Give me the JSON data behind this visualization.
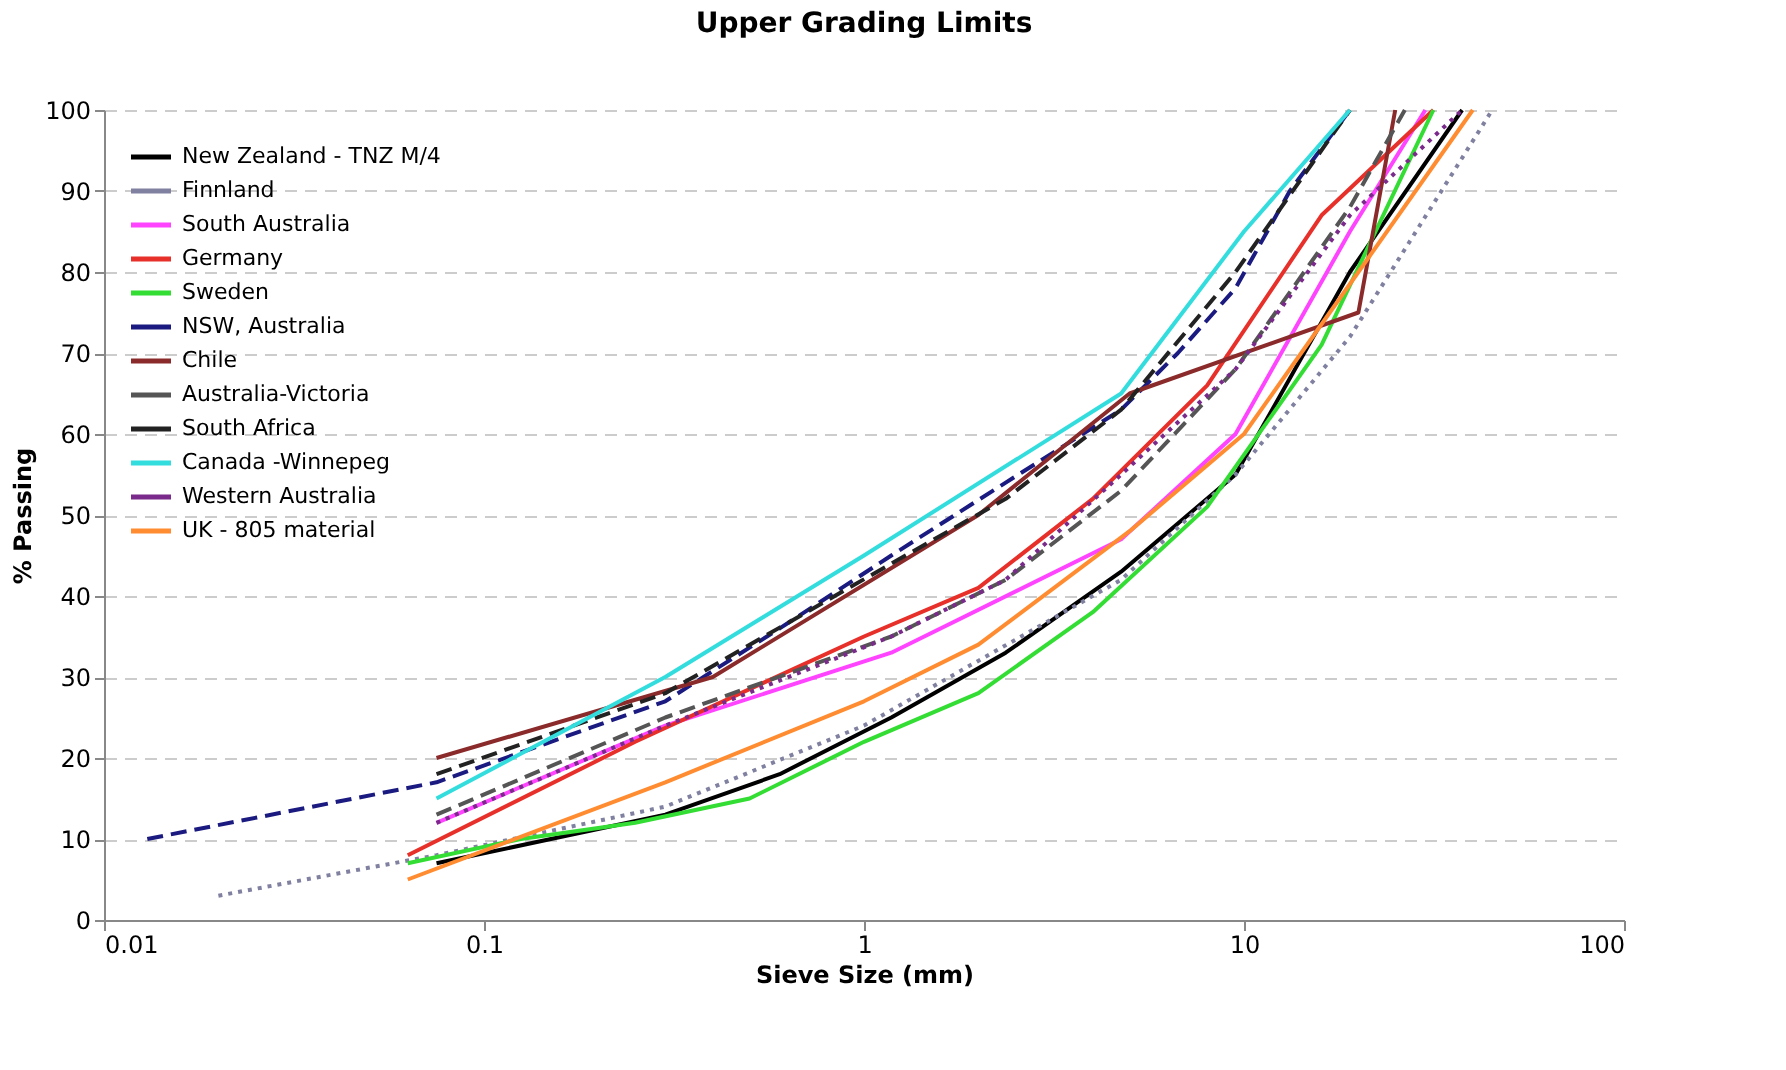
{
  "chart_data": {
    "type": "line",
    "title": "Upper Grading Limits",
    "xlabel": "Sieve Size (mm)",
    "ylabel": "% Passing",
    "log": "x",
    "grid": "y",
    "legend": "top left",
    "xlim": [
      0.01,
      100
    ],
    "xticks": [
      0.01,
      0.1,
      1,
      10,
      100
    ],
    "ylim": [
      0,
      100
    ],
    "yticks": [
      0,
      10,
      20,
      30,
      40,
      50,
      60,
      70,
      80,
      90,
      100
    ],
    "series": [
      {
        "name": "New Zealand - TNZ M/4",
        "color": "#000000",
        "line_style": "solid",
        "x": [
          0.075,
          0.15,
          0.3,
          0.6,
          1.18,
          2.36,
          4.75,
          9.5,
          19,
          37.5
        ],
        "values": [
          7,
          10,
          13,
          18,
          25,
          33,
          43,
          55,
          80,
          100
        ]
      },
      {
        "name": "Finnland",
        "color": "#8080a0",
        "line_style": "dotted",
        "x": [
          0.02,
          0.075,
          0.3,
          1,
          4.75,
          9.5,
          19,
          45
        ],
        "values": [
          3,
          8,
          14,
          24,
          42,
          55,
          72,
          100
        ]
      },
      {
        "name": "South Australia",
        "color": "#ff44ff",
        "line_style": "solid",
        "x": [
          0.075,
          0.3,
          1.18,
          4.75,
          9.5,
          19,
          30
        ],
        "values": [
          12,
          24,
          33,
          47,
          60,
          85,
          100
        ]
      },
      {
        "name": "Germany",
        "color": "#e8302a",
        "line_style": "solid",
        "x": [
          0.063,
          0.25,
          1,
          2,
          4,
          8,
          16,
          31.5
        ],
        "values": [
          8,
          22,
          35,
          41,
          52,
          66,
          87,
          100
        ]
      },
      {
        "name": "Sweden",
        "color": "#33dd33",
        "line_style": "solid",
        "x": [
          0.063,
          0.125,
          0.25,
          0.5,
          1,
          2,
          4,
          8,
          16,
          31.5
        ],
        "values": [
          7,
          10,
          12,
          15,
          22,
          28,
          38,
          51,
          71,
          100
        ]
      },
      {
        "name": "NSW, Australia",
        "color": "#1a1a80",
        "line_style": "dashed",
        "x": [
          0.013,
          0.075,
          0.15,
          0.3,
          0.6,
          1.18,
          2.36,
          4.75,
          6.7,
          9.5,
          13.2,
          19
        ],
        "values": [
          10,
          17,
          22,
          27,
          36,
          45,
          54,
          63,
          70,
          78,
          90,
          100
        ]
      },
      {
        "name": "Chile",
        "color": "#8b2a2a",
        "line_style": "solid",
        "x": [
          0.075,
          0.4,
          2,
          5,
          20,
          25
        ],
        "values": [
          20,
          30,
          50,
          65,
          75,
          100
        ]
      },
      {
        "name": "Australia-Victoria",
        "color": "#555555",
        "line_style": "dashed",
        "x": [
          0.075,
          0.3,
          1.18,
          2.36,
          4.75,
          9.5,
          19,
          26.5
        ],
        "values": [
          13,
          25,
          35,
          42,
          53,
          68,
          88,
          100
        ]
      },
      {
        "name": "South Africa",
        "color": "#222222",
        "line_style": "dashed",
        "x": [
          0.075,
          0.3,
          1.18,
          2.36,
          4.75,
          9.5,
          19
        ],
        "values": [
          18,
          28,
          44,
          52,
          63,
          80,
          100
        ]
      },
      {
        "name": "Canada -Winnepeg",
        "color": "#33dddd",
        "line_style": "solid",
        "x": [
          0.075,
          0.3,
          1,
          4.75,
          10,
          19
        ],
        "values": [
          15,
          30,
          45,
          65,
          85,
          100
        ]
      },
      {
        "name": "Western Australia",
        "color": "#7a2a8a",
        "line_style": "dotted",
        "x": [
          0.075,
          0.3,
          1.18,
          2.36,
          4.75,
          9.5,
          19,
          37.5
        ],
        "values": [
          12,
          24,
          35,
          42,
          55,
          68,
          87,
          100
        ]
      },
      {
        "name": "UK - 805 material",
        "color": "#ff8c30",
        "line_style": "solid",
        "x": [
          0.063,
          0.3,
          1,
          2,
          5,
          10,
          20,
          40
        ],
        "values": [
          5,
          17,
          27,
          34,
          48,
          60,
          80,
          100
        ]
      }
    ]
  }
}
